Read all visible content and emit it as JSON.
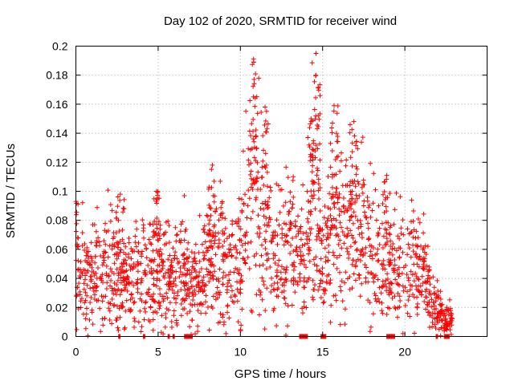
{
  "chart_data": {
    "type": "scatter",
    "title": "Day 102 of 2020, SRMTID for receiver wind",
    "xlabel": "GPS time / hours",
    "ylabel": "SRMTID / TECUs",
    "xlim": [
      0,
      25
    ],
    "ylim": [
      0,
      0.2
    ],
    "xticks": [
      "0",
      "5",
      "10",
      "15",
      "20"
    ],
    "yticks": [
      "0",
      "0.02",
      "0.04",
      "0.06",
      "0.08",
      "0.1",
      "0.12",
      "0.14",
      "0.16",
      "0.18",
      "0.2"
    ],
    "grid": true,
    "marker": "+",
    "marker_color": "#ff0000",
    "series": [
      {
        "name": "SRMTID",
        "profile_x": [
          0.0,
          0.5,
          1.0,
          1.5,
          2.0,
          2.6,
          3.0,
          3.5,
          4.0,
          4.5,
          5.0,
          5.5,
          6.0,
          6.5,
          7.0,
          7.5,
          8.0,
          8.5,
          9.0,
          9.5,
          10.0,
          10.5,
          11.0,
          11.5,
          12.0,
          12.5,
          13.0,
          13.5,
          14.0,
          14.5,
          15.0,
          15.5,
          16.0,
          16.5,
          17.0,
          17.5,
          18.0,
          18.5,
          19.0,
          19.5,
          20.0,
          20.5,
          21.0,
          21.5,
          22.0,
          22.5,
          22.9
        ],
        "profile_mean": [
          0.045,
          0.042,
          0.04,
          0.045,
          0.05,
          0.035,
          0.035,
          0.04,
          0.042,
          0.045,
          0.05,
          0.04,
          0.045,
          0.048,
          0.03,
          0.04,
          0.05,
          0.055,
          0.055,
          0.05,
          0.06,
          0.085,
          0.095,
          0.075,
          0.06,
          0.055,
          0.06,
          0.06,
          0.05,
          0.11,
          0.04,
          0.07,
          0.075,
          0.075,
          0.075,
          0.07,
          0.065,
          0.055,
          0.04,
          0.045,
          0.045,
          0.045,
          0.045,
          0.03,
          0.02,
          0.012,
          0.015
        ],
        "peaks": [
          {
            "x": 10.8,
            "y": 0.191
          },
          {
            "x": 11.5,
            "y": 0.158
          },
          {
            "x": 14.3,
            "y": 0.15
          },
          {
            "x": 14.6,
            "y": 0.195
          },
          {
            "x": 15.7,
            "y": 0.159
          },
          {
            "x": 16.9,
            "y": 0.148
          },
          {
            "x": 8.3,
            "y": 0.118
          },
          {
            "x": 18.9,
            "y": 0.111
          },
          {
            "x": 0.0,
            "y": 0.093
          },
          {
            "x": 2.7,
            "y": 0.098
          },
          {
            "x": 4.9,
            "y": 0.1
          }
        ],
        "zero_ranges": [
          [
            2.6,
            2.7
          ],
          [
            4.1,
            4.2
          ],
          [
            5.6,
            5.7
          ],
          [
            5.9,
            6.0
          ],
          [
            6.6,
            7.1
          ],
          [
            13.6,
            14.1
          ],
          [
            14.9,
            15.2
          ],
          [
            18.9,
            19.4
          ],
          [
            21.9,
            22.0
          ],
          [
            22.4,
            22.7
          ]
        ]
      }
    ]
  }
}
